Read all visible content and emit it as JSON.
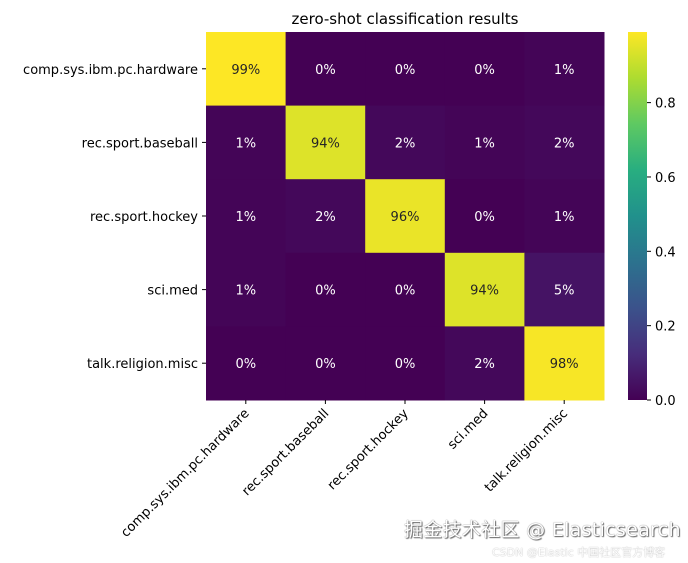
{
  "chart_data": {
    "type": "heatmap",
    "title": "zero-shot classification results",
    "rows": [
      "comp.sys.ibm.pc.hardware",
      "rec.sport.baseball",
      "rec.sport.hockey",
      "sci.med",
      "talk.religion.misc"
    ],
    "columns": [
      "comp.sys.ibm.pc.hardware",
      "rec.sport.baseball",
      "rec.sport.hockey",
      "sci.med",
      "talk.religion.misc"
    ],
    "values": [
      [
        0.99,
        0.0,
        0.0,
        0.0,
        0.01
      ],
      [
        0.01,
        0.94,
        0.02,
        0.01,
        0.02
      ],
      [
        0.01,
        0.02,
        0.96,
        0.0,
        0.01
      ],
      [
        0.01,
        0.0,
        0.0,
        0.94,
        0.05
      ],
      [
        0.0,
        0.0,
        0.0,
        0.02,
        0.98
      ]
    ],
    "labels": [
      [
        "99%",
        "0%",
        "0%",
        "0%",
        "1%"
      ],
      [
        "1%",
        "94%",
        "2%",
        "1%",
        "2%"
      ],
      [
        "1%",
        "2%",
        "96%",
        "0%",
        "1%"
      ],
      [
        "1%",
        "0%",
        "0%",
        "94%",
        "5%"
      ],
      [
        "0%",
        "0%",
        "0%",
        "2%",
        "98%"
      ]
    ],
    "colormap": "viridis",
    "colorbar": {
      "range": [
        0.0,
        0.99
      ],
      "ticks": [
        "0.0",
        "0.2",
        "0.4",
        "0.6",
        "0.8"
      ]
    },
    "xlabel": "",
    "ylabel": ""
  },
  "watermark": {
    "line1": "掘金技术社区 @ Elasticsearch",
    "line2": "CSDN @Elastic 中国社区官方博客"
  }
}
